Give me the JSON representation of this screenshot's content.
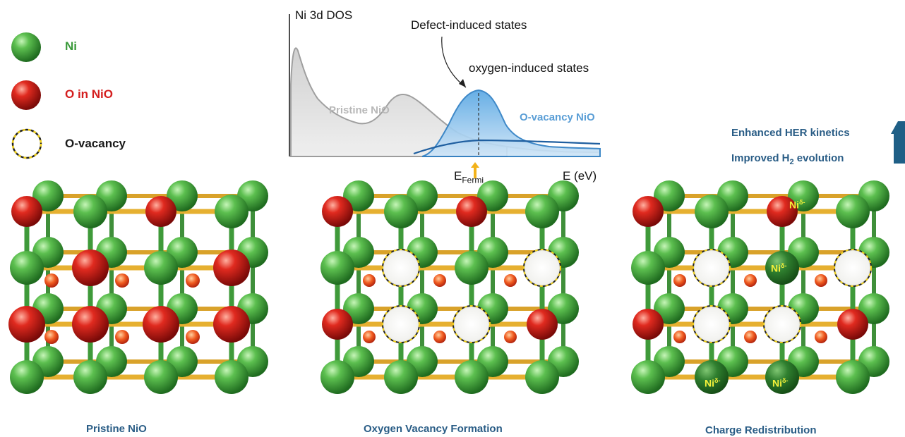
{
  "legend": {
    "ni": {
      "label": "Ni",
      "color": "#3a9a3a"
    },
    "o": {
      "label": "O in NiO",
      "color": "#d41e1e"
    },
    "vacancy": {
      "label": "O-vacancy",
      "color": "#1a1a1a"
    }
  },
  "dos": {
    "axis_title": "Ni 3d DOS",
    "annotation_defect": "Defect-induced states",
    "annotation_oxygen": "oxygen-induced states",
    "label_pristine": "Pristine NiO",
    "label_vacancy": "O-vacancy NiO",
    "x_label": "E (eV)",
    "fermi_main": "E",
    "fermi_sub": "Fermi"
  },
  "effects": {
    "line1": "Enhanced HER kinetics",
    "line2_pre": "Improved H",
    "line2_sub": "2",
    "line2_post": " evolution"
  },
  "panels": {
    "pristine_caption": "Pristine NiO",
    "vacancy_caption": "Oxygen Vacancy Formation",
    "charge_caption": "Charge Redistribution",
    "ni_delta": "Ni",
    "delta_sup": "δ-"
  },
  "colors": {
    "ni": "#3f9a3f",
    "o": "#d01818",
    "bond": "#e0a82a",
    "pristine_curve": "#9a9a9a",
    "vacancy_curve": "#2f7fc4",
    "caption": "#2a5d86",
    "arrow_fermi": "#f2b21b"
  }
}
